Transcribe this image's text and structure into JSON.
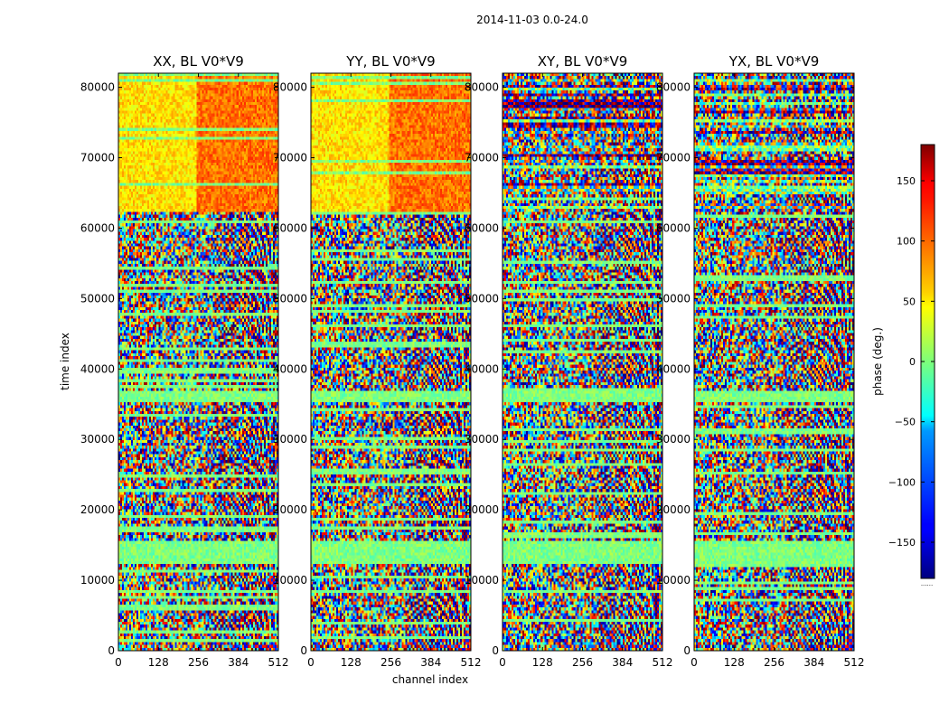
{
  "suptitle": "2014-11-03 0.0-24.0",
  "chart_data": {
    "type": "heatmap",
    "xlabel": "channel index",
    "ylabel": "time index",
    "xlim": [
      0,
      512
    ],
    "ylim": [
      0,
      82000
    ],
    "x_ticks": [
      0,
      128,
      256,
      384,
      512
    ],
    "y_ticks": [
      0,
      10000,
      20000,
      30000,
      40000,
      50000,
      60000,
      70000,
      80000
    ],
    "panels": [
      {
        "title": "XX, BL V0*V9",
        "pol": "XX"
      },
      {
        "title": "YY, BL V0*V9",
        "pol": "YY"
      },
      {
        "title": "XY, BL V0*V9",
        "pol": "XY"
      },
      {
        "title": "YX, BL V0*V9",
        "pol": "YX"
      }
    ],
    "colorbar": {
      "label": "phase (deg.)",
      "range": [
        -180,
        180
      ],
      "ticks": [
        -150,
        -100,
        -50,
        0,
        50,
        100,
        150
      ],
      "tick_labels": [
        "−150",
        "−100",
        "−50",
        "0",
        "50",
        "100",
        "150"
      ],
      "colormap": "jet",
      "footer": "......"
    }
  }
}
